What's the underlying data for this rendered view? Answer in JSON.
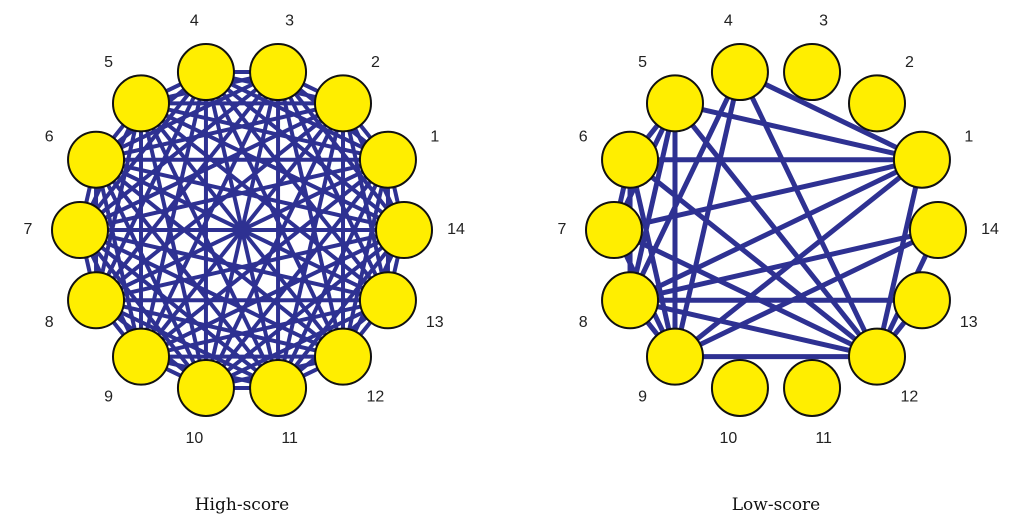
{
  "colors": {
    "edge": "#2e3192",
    "node": "#ffee00",
    "node_stroke": "#111111"
  },
  "graphs": [
    {
      "caption": "High-score",
      "nodes": [
        "1",
        "2",
        "3",
        "4",
        "5",
        "6",
        "7",
        "8",
        "9",
        "10",
        "11",
        "12",
        "13",
        "14"
      ],
      "complete": true,
      "edges": []
    },
    {
      "caption": "Low-score",
      "nodes": [
        "1",
        "2",
        "3",
        "4",
        "5",
        "6",
        "7",
        "8",
        "9",
        "10",
        "11",
        "12",
        "13",
        "14"
      ],
      "complete": false,
      "edges": [
        [
          1,
          4
        ],
        [
          1,
          5
        ],
        [
          1,
          6
        ],
        [
          1,
          7
        ],
        [
          1,
          8
        ],
        [
          1,
          9
        ],
        [
          1,
          12
        ],
        [
          12,
          4
        ],
        [
          12,
          5
        ],
        [
          12,
          6
        ],
        [
          12,
          7
        ],
        [
          12,
          8
        ],
        [
          12,
          9
        ],
        [
          12,
          13
        ],
        [
          12,
          14
        ],
        [
          14,
          8
        ],
        [
          14,
          9
        ],
        [
          13,
          8
        ],
        [
          9,
          4
        ],
        [
          9,
          5
        ],
        [
          9,
          6
        ],
        [
          9,
          7
        ],
        [
          9,
          8
        ],
        [
          8,
          4
        ],
        [
          8,
          5
        ],
        [
          8,
          6
        ],
        [
          7,
          5
        ],
        [
          7,
          6
        ],
        [
          6,
          5
        ]
      ]
    }
  ]
}
